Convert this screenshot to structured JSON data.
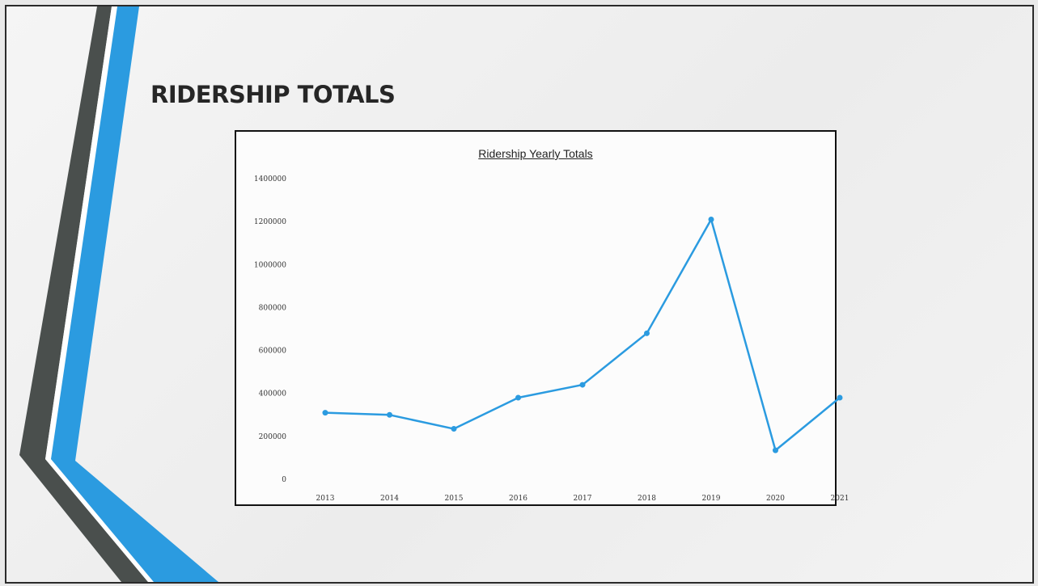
{
  "slide": {
    "title": "RIDERSHIP TOTALS",
    "accent_color": "#2b9be0",
    "stripe_color": "#4a4f4d"
  },
  "chart_data": {
    "type": "line",
    "title": "Ridership Yearly Totals",
    "xlabel": "",
    "ylabel": "",
    "categories": [
      "2013",
      "2014",
      "2015",
      "2016",
      "2017",
      "2018",
      "2019",
      "2020",
      "2021"
    ],
    "series": [
      {
        "values": [
          310000,
          300000,
          235000,
          380000,
          440000,
          680000,
          1210000,
          135000,
          380000
        ],
        "color": "#2b9be0"
      }
    ],
    "ylim": [
      0,
      1400000
    ],
    "yticks": [
      "1400000",
      "1200000",
      "1000000",
      "800000",
      "600000",
      "400000",
      "200000",
      "0"
    ],
    "grid": false,
    "legend": "none"
  }
}
